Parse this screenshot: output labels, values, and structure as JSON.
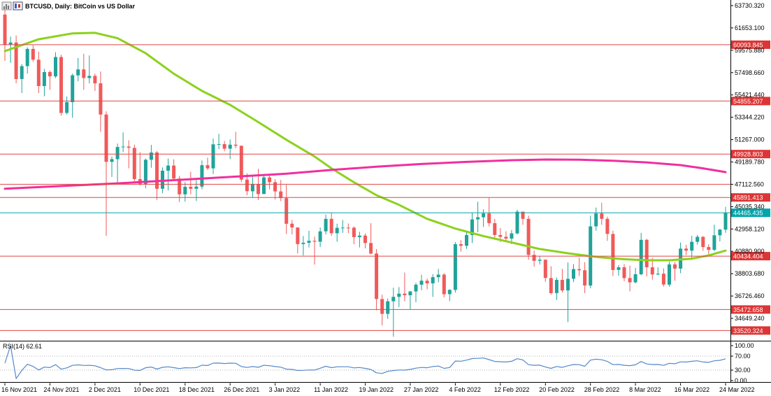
{
  "window": {
    "symbol_label": "BTCUSD, Daily: BitCoin vs US Dollar"
  },
  "colors": {
    "background": "#ffffff",
    "candle_up": "#20A39A",
    "candle_down": "#F05A5A",
    "ma_green": "#8BD21C",
    "ma_pink": "#F02F9E",
    "level_line": "#E04545",
    "level_badge": "#DD3535",
    "current_line": "#00A2A2",
    "current_badge": "#00A5AB",
    "rsi_line": "#5589C9",
    "rsi_level_line": "#b5b5b5",
    "axis_text": "#000000"
  },
  "price_axis": {
    "ticks": [
      "63730.320",
      "61653.100",
      "59575.880",
      "57498.660",
      "55421.440",
      "53344.220",
      "51267.000",
      "49189.780",
      "47112.560",
      "45035.340",
      "42958.120",
      "40880.900",
      "38803.680",
      "36726.460",
      "34649.240"
    ]
  },
  "levels": {
    "horizontal_lines": [
      {
        "price": 60093.845,
        "label": "60093.845",
        "badge": true
      },
      {
        "price": 54855.207,
        "label": "54855.207",
        "badge": true
      },
      {
        "price": 49928.803,
        "label": "49928.803",
        "badge": true
      },
      {
        "price": 47112.56,
        "label": "47112.560",
        "badge": false
      },
      {
        "price": 45891.413,
        "label": "45891.413",
        "badge": true
      },
      {
        "price": 40434.404,
        "label": "40434.404",
        "badge": true
      },
      {
        "price": 35472.658,
        "label": "35472.658",
        "badge": true
      },
      {
        "price": 33520.324,
        "label": "33520.324",
        "badge": true
      }
    ],
    "current_price": {
      "price": 44465.435,
      "label": "44465.435"
    }
  },
  "rsi_panel": {
    "label": "RSI(14) 62.61",
    "period": 14,
    "value": 62.61,
    "scale_labels": [
      "100.00",
      "70.00",
      "30.00",
      "0.00"
    ],
    "levels": [
      70,
      30
    ]
  },
  "chart_data": {
    "type": "candlestick",
    "title": "BTCUSD, Daily: BitCoin vs US Dollar",
    "symbol": "BTCUSD",
    "timeframe": "Daily",
    "start_date": "16 Nov 2021",
    "end_date": "24 Mar 2022",
    "price_range": [
      32570,
      64250
    ],
    "x_tick_labels": [
      "16 Nov 2021",
      "24 Nov 2021",
      "2 Dec 2021",
      "10 Dec 2021",
      "18 Dec 2021",
      "26 Dec 2021",
      "3 Jan 2022",
      "11 Jan 2022",
      "19 Jan 2022",
      "27 Jan 2022",
      "4 Feb 2022",
      "12 Feb 2022",
      "20 Feb 2022",
      "28 Feb 2022",
      "8 Mar 2022",
      "16 Mar 2022",
      "24 Mar 2022"
    ],
    "x_tick_step_candles": 8,
    "candles": [
      [
        62900,
        63600,
        58600,
        60100
      ],
      [
        60100,
        60850,
        58400,
        60300
      ],
      [
        60300,
        60950,
        56500,
        56900
      ],
      [
        56900,
        58300,
        55600,
        58100
      ],
      [
        58100,
        59850,
        57400,
        59700
      ],
      [
        59700,
        60050,
        58500,
        58700
      ],
      [
        58700,
        59450,
        55600,
        56250
      ],
      [
        56250,
        57850,
        55300,
        57550
      ],
      [
        57550,
        57700,
        55900,
        57150
      ],
      [
        57150,
        59400,
        57000,
        58950
      ],
      [
        58950,
        59150,
        53500,
        53750
      ],
      [
        53750,
        55280,
        53610,
        54750
      ],
      [
        54750,
        57400,
        53300,
        57250
      ],
      [
        57250,
        58850,
        56700,
        57800
      ],
      [
        57800,
        59250,
        55900,
        57000
      ],
      [
        57000,
        59100,
        56500,
        57200
      ],
      [
        57200,
        57400,
        55800,
        56500
      ],
      [
        56500,
        57600,
        52000,
        53600
      ],
      [
        53600,
        53900,
        42330,
        49200
      ],
      [
        49200,
        49700,
        47800,
        49450
      ],
      [
        49450,
        50900,
        47100,
        50580
      ],
      [
        50580,
        51950,
        50100,
        50620
      ],
      [
        50620,
        51200,
        48600,
        50500
      ],
      [
        50500,
        50790,
        47300,
        47600
      ],
      [
        47600,
        50100,
        47000,
        47150
      ],
      [
        47150,
        49500,
        46750,
        49400
      ],
      [
        49400,
        50780,
        48660,
        50070
      ],
      [
        50070,
        50200,
        45670,
        46700
      ],
      [
        46700,
        48680,
        46290,
        48380
      ],
      [
        48380,
        49500,
        46550,
        48860
      ],
      [
        48860,
        49440,
        47540,
        47650
      ],
      [
        47650,
        47900,
        45460,
        46180
      ],
      [
        46180,
        47320,
        45500,
        46880
      ],
      [
        46880,
        48280,
        46180,
        46700
      ],
      [
        46700,
        47520,
        45560,
        46900
      ],
      [
        46900,
        49330,
        46650,
        48890
      ],
      [
        48890,
        49590,
        48450,
        48600
      ],
      [
        48600,
        51370,
        48070,
        50830
      ],
      [
        50830,
        51810,
        50380,
        50850
      ],
      [
        50850,
        51150,
        50190,
        50430
      ],
      [
        50430,
        51280,
        49460,
        50800
      ],
      [
        50800,
        52000,
        50450,
        50700
      ],
      [
        50700,
        50700,
        47320,
        47550
      ],
      [
        47550,
        48140,
        46100,
        46470
      ],
      [
        46470,
        47900,
        45900,
        47150
      ],
      [
        47150,
        48550,
        45650,
        46210
      ],
      [
        46210,
        47950,
        46210,
        47750
      ],
      [
        47750,
        47990,
        46650,
        47310
      ],
      [
        47310,
        47600,
        45700,
        46450
      ],
      [
        46450,
        47520,
        45550,
        45830
      ],
      [
        45830,
        47070,
        42500,
        43450
      ],
      [
        43450,
        43800,
        42450,
        43100
      ],
      [
        43100,
        43100,
        40680,
        41560
      ],
      [
        41560,
        42300,
        40500,
        41680
      ],
      [
        41680,
        42790,
        41250,
        41860
      ],
      [
        41860,
        42250,
        39650,
        41780
      ],
      [
        41780,
        43100,
        41280,
        42740
      ],
      [
        42740,
        44300,
        42450,
        43900
      ],
      [
        43900,
        44450,
        42320,
        42560
      ],
      [
        42560,
        43450,
        41780,
        43070
      ],
      [
        43070,
        43800,
        42600,
        43090
      ],
      [
        43090,
        43470,
        42580,
        43080
      ],
      [
        43080,
        43200,
        41550,
        42200
      ],
      [
        42200,
        42700,
        41250,
        42350
      ],
      [
        42350,
        42550,
        41150,
        41660
      ],
      [
        41660,
        43500,
        40600,
        40680
      ],
      [
        40680,
        41100,
        35400,
        36450
      ],
      [
        36450,
        36850,
        34000,
        35070
      ],
      [
        35070,
        36500,
        34600,
        36240
      ],
      [
        36240,
        37500,
        32950,
        36650
      ],
      [
        36650,
        37550,
        35700,
        36950
      ],
      [
        36950,
        38900,
        36250,
        36800
      ],
      [
        36800,
        37200,
        35500,
        37150
      ],
      [
        37150,
        37950,
        36150,
        37780
      ],
      [
        37780,
        38700,
        37260,
        38150
      ],
      [
        38150,
        38350,
        37350,
        37900
      ],
      [
        37900,
        38750,
        36650,
        38480
      ],
      [
        38480,
        39250,
        38000,
        38720
      ],
      [
        38720,
        38860,
        36600,
        36900
      ],
      [
        36900,
        37350,
        36250,
        37300
      ],
      [
        37300,
        41750,
        37050,
        41550
      ],
      [
        41550,
        41920,
        40850,
        41400
      ],
      [
        41400,
        42700,
        41120,
        42400
      ],
      [
        42400,
        44500,
        41650,
        43850
      ],
      [
        43850,
        45490,
        42650,
        44050
      ],
      [
        44050,
        44800,
        43150,
        44400
      ],
      [
        44400,
        45850,
        43200,
        43500
      ],
      [
        43500,
        43900,
        42000,
        42400
      ],
      [
        42400,
        43050,
        41750,
        42230
      ],
      [
        42230,
        42750,
        41880,
        42070
      ],
      [
        42070,
        42870,
        41550,
        42550
      ],
      [
        42550,
        44750,
        42450,
        44570
      ],
      [
        44570,
        44580,
        43350,
        43900
      ],
      [
        43900,
        44200,
        40100,
        40550
      ],
      [
        40550,
        40950,
        39450,
        40000
      ],
      [
        40000,
        40450,
        39650,
        40100
      ],
      [
        40100,
        40120,
        38050,
        38400
      ],
      [
        38400,
        39500,
        36850,
        37000
      ],
      [
        37000,
        38450,
        36350,
        38230
      ],
      [
        38230,
        39250,
        37050,
        37250
      ],
      [
        37250,
        39850,
        34300,
        38330
      ],
      [
        38330,
        39700,
        38030,
        39230
      ],
      [
        39230,
        40300,
        38590,
        39120
      ],
      [
        39120,
        39870,
        37000,
        37700
      ],
      [
        37700,
        44200,
        37450,
        43200
      ],
      [
        43200,
        44950,
        42800,
        44400
      ],
      [
        44400,
        45400,
        43350,
        43900
      ],
      [
        43900,
        44100,
        41850,
        42500
      ],
      [
        42500,
        42800,
        38600,
        39150
      ],
      [
        39150,
        39600,
        38600,
        39400
      ],
      [
        39400,
        39700,
        38100,
        38400
      ],
      [
        38400,
        39550,
        37170,
        38000
      ],
      [
        38000,
        39350,
        37900,
        38750
      ],
      [
        38750,
        42600,
        38660,
        41950
      ],
      [
        41950,
        42050,
        38550,
        39400
      ],
      [
        39400,
        40250,
        38250,
        38730
      ],
      [
        38730,
        39400,
        38660,
        38800
      ],
      [
        38800,
        39300,
        37600,
        37790
      ],
      [
        37790,
        39900,
        37590,
        39670
      ],
      [
        39670,
        39890,
        38150,
        39280
      ],
      [
        39280,
        41700,
        38850,
        41140
      ],
      [
        41140,
        41480,
        40540,
        40950
      ],
      [
        40950,
        42330,
        40200,
        41770
      ],
      [
        41770,
        42400,
        41500,
        42230
      ],
      [
        42230,
        42300,
        40920,
        41280
      ],
      [
        41280,
        41550,
        40530,
        41020
      ],
      [
        41020,
        43360,
        40900,
        42375
      ],
      [
        42375,
        42970,
        41800,
        42900
      ],
      [
        42900,
        45010,
        42600,
        44465
      ]
    ],
    "overlays": [
      {
        "name": "sma-fast-green",
        "color_key": "ma_green",
        "points": [
          [
            0,
            59500
          ],
          [
            6,
            60600
          ],
          [
            12,
            61150
          ],
          [
            16,
            61200
          ],
          [
            20,
            60700
          ],
          [
            25,
            59300
          ],
          [
            30,
            57400
          ],
          [
            35,
            55800
          ],
          [
            40,
            54500
          ],
          [
            45,
            52900
          ],
          [
            50,
            51250
          ],
          [
            55,
            49700
          ],
          [
            58,
            48600
          ],
          [
            62,
            47300
          ],
          [
            66,
            46100
          ],
          [
            70,
            45200
          ],
          [
            75,
            43900
          ],
          [
            80,
            43000
          ],
          [
            85,
            42300
          ],
          [
            90,
            41700
          ],
          [
            95,
            41100
          ],
          [
            100,
            40700
          ],
          [
            105,
            40360
          ],
          [
            110,
            40150
          ],
          [
            114,
            40050
          ],
          [
            118,
            40050
          ],
          [
            122,
            40200
          ],
          [
            125,
            40500
          ],
          [
            128,
            40950
          ]
        ]
      },
      {
        "name": "sma-slow-pink",
        "color_key": "ma_pink",
        "points": [
          [
            0,
            46700
          ],
          [
            10,
            46950
          ],
          [
            20,
            47200
          ],
          [
            30,
            47500
          ],
          [
            40,
            47800
          ],
          [
            50,
            48100
          ],
          [
            58,
            48450
          ],
          [
            66,
            48750
          ],
          [
            74,
            49000
          ],
          [
            82,
            49200
          ],
          [
            90,
            49350
          ],
          [
            96,
            49420
          ],
          [
            102,
            49400
          ],
          [
            108,
            49300
          ],
          [
            114,
            49150
          ],
          [
            120,
            48900
          ],
          [
            124,
            48600
          ],
          [
            128,
            48250
          ]
        ]
      }
    ],
    "indicator": {
      "name": "RSI",
      "period": 14,
      "last_value": 62.61,
      "computed_from": "closes",
      "range": [
        0,
        100
      ]
    }
  }
}
